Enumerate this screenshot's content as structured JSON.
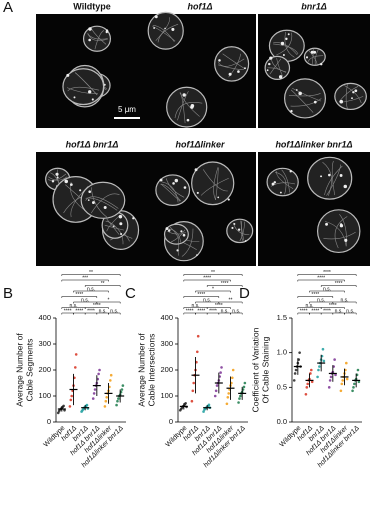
{
  "panel_a": {
    "label": "A",
    "scale_bar": "5 μm",
    "images": [
      {
        "label": "Wildtype"
      },
      {
        "label": "hof1Δ"
      },
      {
        "label": "bnr1Δ"
      },
      {
        "label": "hof1Δ bnr1Δ"
      },
      {
        "label": "hof1Δlinker"
      },
      {
        "label": "hof1Δlinker bnr1Δ"
      }
    ]
  },
  "chart_data": [
    {
      "type": "dotplot",
      "panel": "B",
      "ylabel": [
        "Average Number of",
        "Cable Segments"
      ],
      "categories": [
        "Wildtype",
        "hof1Δ",
        "bnr1Δ",
        "hof1Δ bnr1Δ",
        "hof1Δlinker",
        "hof1Δlinker bnr1Δ"
      ],
      "colors": [
        "#222222",
        "#d7301f",
        "#1b9e9e",
        "#7b3294",
        "#f39c12",
        "#1a7a4a"
      ],
      "points": [
        [
          35,
          42,
          48,
          50,
          55,
          58,
          62,
          45
        ],
        [
          60,
          85,
          100,
          120,
          140,
          170,
          210,
          260
        ],
        [
          40,
          45,
          50,
          55,
          58,
          62,
          65,
          52
        ],
        [
          90,
          110,
          125,
          140,
          150,
          165,
          185,
          200
        ],
        [
          60,
          80,
          95,
          110,
          120,
          135,
          160,
          180
        ],
        [
          65,
          80,
          90,
          100,
          105,
          115,
          125,
          140
        ]
      ],
      "means": [
        50,
        125,
        55,
        140,
        110,
        100
      ],
      "sds": [
        10,
        60,
        10,
        40,
        40,
        25
      ],
      "ylim": [
        0,
        400
      ],
      "yticks": [
        0,
        100,
        200,
        300,
        400
      ],
      "brackets": [
        {
          "pair": [
            0,
            1
          ],
          "label": "****"
        },
        {
          "pair": [
            1,
            2
          ],
          "label": "****"
        },
        {
          "pair": [
            2,
            3
          ],
          "label": "****"
        },
        {
          "pair": [
            3,
            4
          ],
          "label": "n.s."
        },
        {
          "pair": [
            4,
            5
          ],
          "label": "n.s."
        },
        {
          "pair": [
            0,
            2
          ],
          "label": "n.s."
        },
        {
          "pair": [
            1,
            3
          ],
          "label": "n.s."
        },
        {
          "pair": [
            2,
            4
          ],
          "label": "****"
        },
        {
          "pair": [
            3,
            5
          ],
          "label": "*"
        },
        {
          "pair": [
            0,
            3
          ],
          "label": "****"
        },
        {
          "pair": [
            1,
            4
          ],
          "label": "n.s."
        },
        {
          "pair": [
            2,
            5
          ],
          "label": "**"
        },
        {
          "pair": [
            0,
            4
          ],
          "label": "***"
        },
        {
          "pair": [
            0,
            5
          ],
          "label": "**"
        }
      ]
    },
    {
      "type": "dotplot",
      "panel": "C",
      "ylabel": [
        "Average Number of",
        "Cable Intersections"
      ],
      "categories": [
        "Wildtype",
        "hof1Δ",
        "bnr1Δ",
        "hof1Δ bnr1Δ",
        "hof1Δlinker",
        "hof1Δlinker bnr1Δ"
      ],
      "colors": [
        "#222222",
        "#d7301f",
        "#1b9e9e",
        "#7b3294",
        "#f39c12",
        "#1a7a4a"
      ],
      "points": [
        [
          45,
          50,
          55,
          60,
          62,
          68,
          72,
          58
        ],
        [
          80,
          120,
          150,
          180,
          200,
          230,
          270,
          330
        ],
        [
          40,
          48,
          52,
          55,
          58,
          62,
          66,
          55
        ],
        [
          100,
          120,
          140,
          150,
          160,
          175,
          190,
          210
        ],
        [
          70,
          95,
          110,
          125,
          140,
          150,
          170,
          200
        ],
        [
          75,
          90,
          100,
          110,
          115,
          125,
          135,
          150
        ]
      ],
      "means": [
        60,
        180,
        55,
        150,
        130,
        110
      ],
      "sds": [
        12,
        70,
        10,
        40,
        45,
        25
      ],
      "ylim": [
        0,
        400
      ],
      "yticks": [
        0,
        100,
        200,
        300,
        400
      ],
      "brackets": [
        {
          "pair": [
            0,
            1
          ],
          "label": "****"
        },
        {
          "pair": [
            1,
            2
          ],
          "label": "****"
        },
        {
          "pair": [
            2,
            3
          ],
          "label": "****"
        },
        {
          "pair": [
            3,
            4
          ],
          "label": "n.s."
        },
        {
          "pair": [
            4,
            5
          ],
          "label": "n.s."
        },
        {
          "pair": [
            0,
            2
          ],
          "label": "n.s."
        },
        {
          "pair": [
            1,
            3
          ],
          "label": "n.s."
        },
        {
          "pair": [
            2,
            4
          ],
          "label": "****"
        },
        {
          "pair": [
            3,
            5
          ],
          "label": "**"
        },
        {
          "pair": [
            0,
            3
          ],
          "label": "****"
        },
        {
          "pair": [
            1,
            4
          ],
          "label": "*"
        },
        {
          "pair": [
            2,
            5
          ],
          "label": "****"
        },
        {
          "pair": [
            0,
            4
          ],
          "label": "****"
        },
        {
          "pair": [
            0,
            5
          ],
          "label": "**"
        }
      ]
    },
    {
      "type": "dotplot",
      "panel": "D",
      "ylabel": [
        "Coefficient of Variation",
        "Of Cable Staining"
      ],
      "categories": [
        "Wildtype",
        "hof1Δ",
        "bnr1Δ",
        "hof1Δ bnr1Δ",
        "hof1Δlinker",
        "hof1Δlinker bnr1Δ"
      ],
      "colors": [
        "#222222",
        "#d7301f",
        "#1b9e9e",
        "#7b3294",
        "#f39c12",
        "#1a7a4a"
      ],
      "points": [
        [
          0.6,
          0.7,
          0.75,
          0.8,
          0.85,
          0.9,
          1.0,
          0.8
        ],
        [
          0.4,
          0.5,
          0.55,
          0.6,
          0.62,
          0.7,
          0.75,
          0.58
        ],
        [
          0.65,
          0.75,
          0.8,
          0.85,
          0.9,
          0.95,
          1.05,
          0.88
        ],
        [
          0.5,
          0.6,
          0.65,
          0.7,
          0.72,
          0.8,
          0.9,
          0.68
        ],
        [
          0.45,
          0.55,
          0.6,
          0.65,
          0.7,
          0.75,
          0.85,
          0.62
        ],
        [
          0.45,
          0.5,
          0.55,
          0.6,
          0.62,
          0.68,
          0.75,
          0.58
        ]
      ],
      "means": [
        0.8,
        0.6,
        0.85,
        0.7,
        0.65,
        0.6
      ],
      "sds": [
        0.12,
        0.1,
        0.12,
        0.12,
        0.12,
        0.1
      ],
      "ylim": [
        0,
        1.5
      ],
      "yticks": [
        {
          "value": 0,
          "label": "0.0"
        },
        0.5,
        {
          "value": 1,
          "label": "1.0"
        },
        1.5
      ],
      "brackets": [
        {
          "pair": [
            0,
            1
          ],
          "label": "****"
        },
        {
          "pair": [
            1,
            2
          ],
          "label": "****"
        },
        {
          "pair": [
            2,
            3
          ],
          "label": "****"
        },
        {
          "pair": [
            3,
            4
          ],
          "label": "n.s."
        },
        {
          "pair": [
            4,
            5
          ],
          "label": "n.s."
        },
        {
          "pair": [
            0,
            2
          ],
          "label": "n.s."
        },
        {
          "pair": [
            1,
            3
          ],
          "label": "n.s."
        },
        {
          "pair": [
            2,
            4
          ],
          "label": "****"
        },
        {
          "pair": [
            3,
            5
          ],
          "label": "n.s."
        },
        {
          "pair": [
            0,
            3
          ],
          "label": "****"
        },
        {
          "pair": [
            1,
            4
          ],
          "label": "n.s."
        },
        {
          "pair": [
            2,
            5
          ],
          "label": "****"
        },
        {
          "pair": [
            0,
            4
          ],
          "label": "****"
        },
        {
          "pair": [
            0,
            5
          ],
          "label": "****"
        }
      ]
    }
  ]
}
